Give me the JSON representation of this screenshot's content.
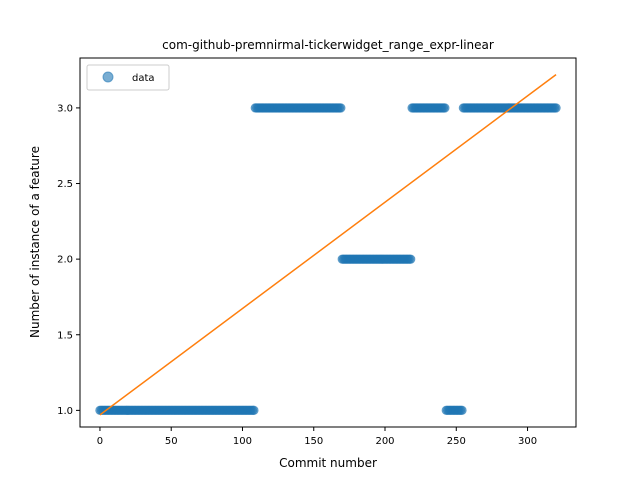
{
  "chart_data": {
    "type": "scatter",
    "title": "com-github-premnirmal-tickerwidget_range_expr-linear",
    "xlabel": "Commit number",
    "ylabel": "Number of instance of a feature",
    "xlim": [
      -14,
      334
    ],
    "ylim": [
      0.89,
      3.33
    ],
    "xticks": [
      0,
      50,
      100,
      150,
      200,
      250,
      300
    ],
    "yticks": [
      1.0,
      1.5,
      2.0,
      2.5,
      3.0
    ],
    "ytick_labels": [
      "1.0",
      "1.5",
      "2.0",
      "2.5",
      "3.0"
    ],
    "legend": {
      "placement": "top-left",
      "entries": [
        "data"
      ]
    },
    "colors": {
      "points": "#1f77b4",
      "fit_line": "#ff7f0e"
    },
    "series": [
      {
        "name": "data",
        "kind": "points",
        "segments": [
          {
            "x_start": 0,
            "x_end": 108,
            "y": 1
          },
          {
            "x_start": 109,
            "x_end": 169,
            "y": 3
          },
          {
            "x_start": 170,
            "x_end": 218,
            "y": 2
          },
          {
            "x_start": 219,
            "x_end": 242,
            "y": 3
          },
          {
            "x_start": 243,
            "x_end": 254,
            "y": 1
          },
          {
            "x_start": 255,
            "x_end": 320,
            "y": 3
          }
        ]
      },
      {
        "kind": "line",
        "x": [
          0,
          320
        ],
        "y": [
          0.97,
          3.22
        ]
      }
    ]
  }
}
